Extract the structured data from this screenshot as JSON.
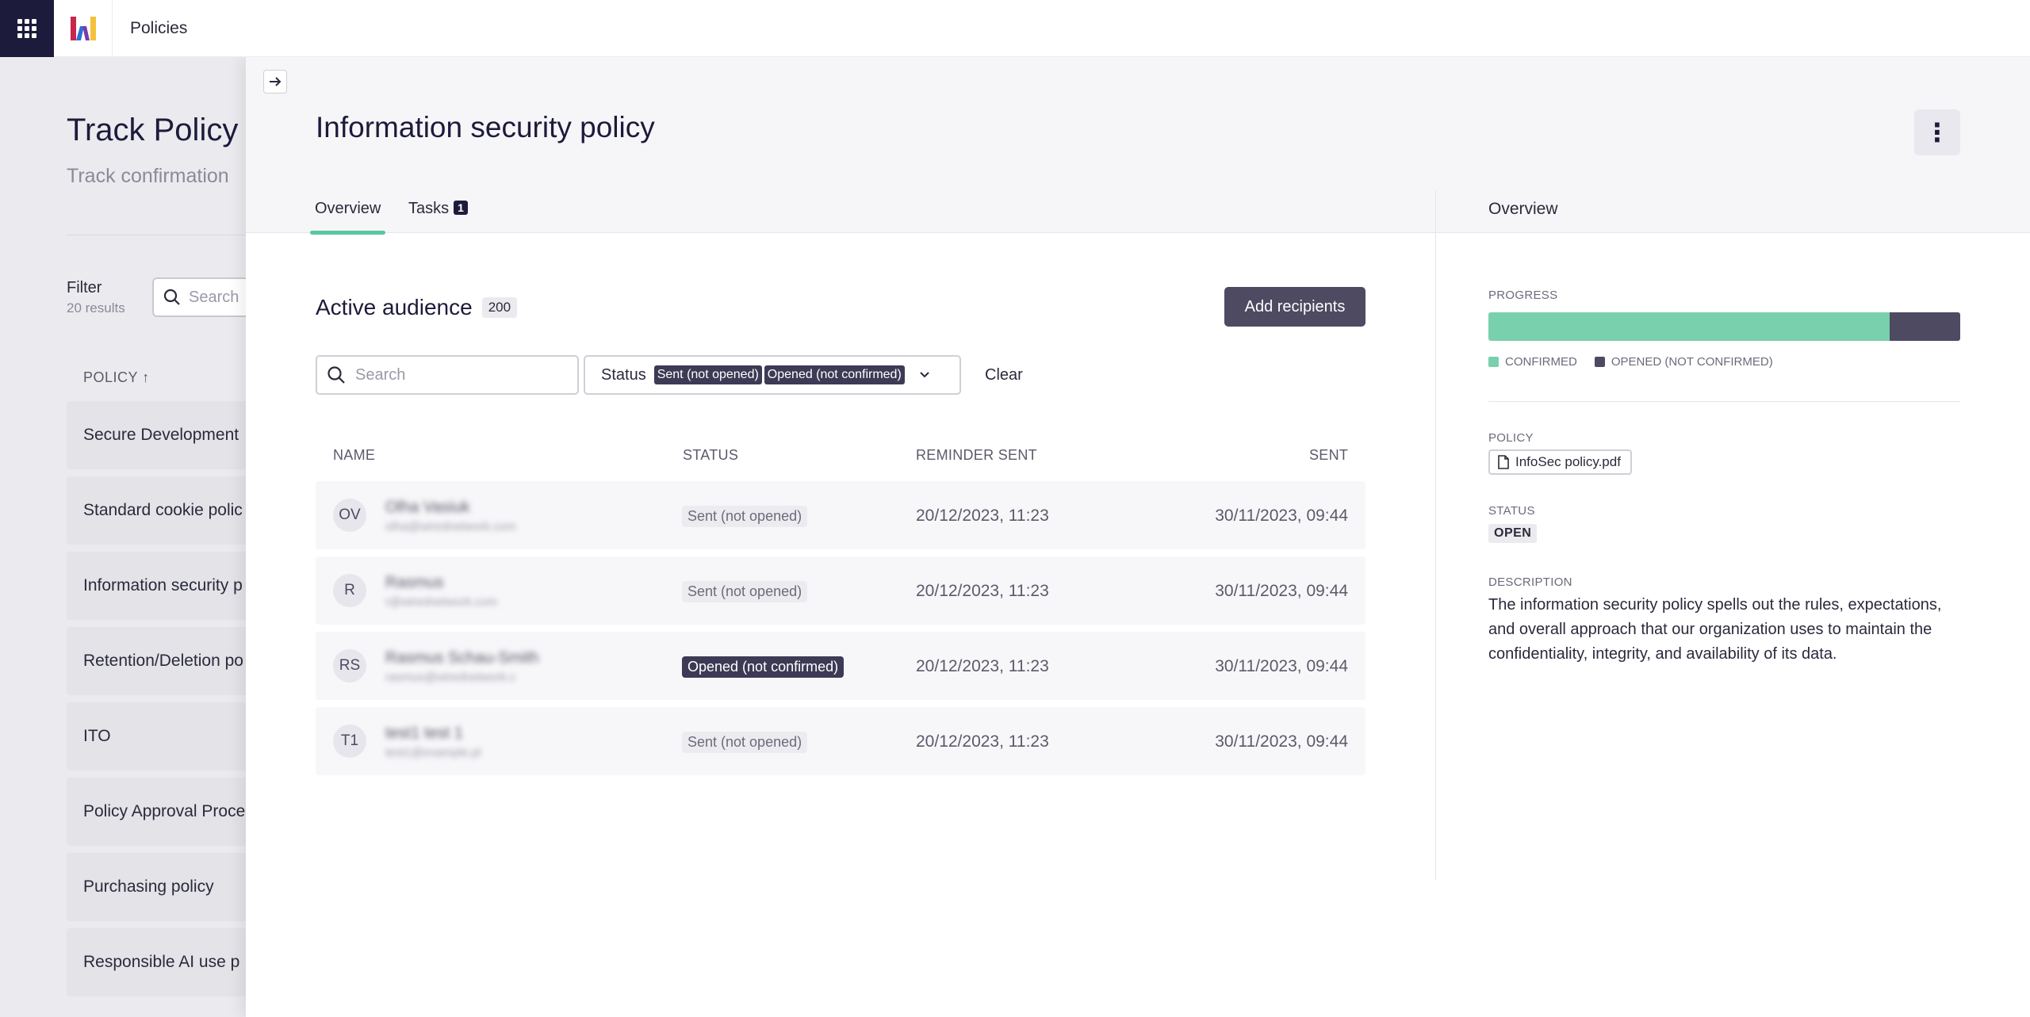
{
  "app": {
    "title": "Policies"
  },
  "background": {
    "title": "Track Policy",
    "subtitle": "Track confirmation",
    "filter_label": "Filter",
    "results": "20 results",
    "search_placeholder": "Search",
    "column_header": "POLICY ↑",
    "policies": [
      "Secure Development",
      "Standard cookie polic",
      "Information security p",
      "Retention/Deletion po",
      "ITO",
      "Policy Approval Proce",
      "Purchasing policy",
      "Responsible AI use p"
    ]
  },
  "drawer": {
    "title": "Information security policy",
    "more_icon": "⋮",
    "tabs": {
      "overview": "Overview",
      "tasks": "Tasks",
      "tasks_count": "1"
    },
    "side_tab": "Overview",
    "audience": {
      "title": "Active audience",
      "count": "200",
      "add_button": "Add recipients",
      "search_placeholder": "Search",
      "status_label": "Status",
      "status_chips": [
        "Sent (not opened)",
        "Opened (not confirmed)"
      ],
      "clear": "Clear",
      "columns": {
        "name": "NAME",
        "status": "STATUS",
        "reminder": "REMINDER SENT",
        "sent": "SENT"
      },
      "rows": [
        {
          "initials": "OV",
          "name": "Olha Vasiuk",
          "email": "olha@wirednetwork.com",
          "status": "Sent (not opened)",
          "status_style": "light",
          "reminder": "20/12/2023, 11:23",
          "sent": "30/11/2023, 09:44"
        },
        {
          "initials": "R",
          "name": "Rasmus",
          "email": "r@wirednetwork.com",
          "status": "Sent (not opened)",
          "status_style": "light",
          "reminder": "20/12/2023, 11:23",
          "sent": "30/11/2023, 09:44"
        },
        {
          "initials": "RS",
          "name": "Rasmus Schau-Smith",
          "email": "rasmus@wirednetwork.c",
          "status": "Opened (not confirmed)",
          "status_style": "dark",
          "reminder": "20/12/2023, 11:23",
          "sent": "30/11/2023, 09:44"
        },
        {
          "initials": "T1",
          "name": "test1 test 1",
          "email": "test1@example.pl",
          "status": "Sent (not opened)",
          "status_style": "light",
          "reminder": "20/12/2023, 11:23",
          "sent": "30/11/2023, 09:44"
        }
      ]
    },
    "side": {
      "progress_label": "PROGRESS",
      "progress": {
        "confirmed_fraction": 0.85,
        "opened_fraction": 0.15
      },
      "legend": [
        "CONFIRMED",
        "OPENED (NOT CONFIRMED)"
      ],
      "policy_label": "POLICY",
      "policy_file": "InfoSec policy.pdf",
      "status_label": "STATUS",
      "status_value": "OPEN",
      "description_label": "DESCRIPTION",
      "description": "The information security policy spells out the rules, expectations, and overall approach that our organization uses to maintain the confidentiality, integrity, and availability of its data."
    }
  },
  "colors": {
    "brand_dark": "#1d1b3b",
    "accent_green": "#79d0ad",
    "accent_dark": "#4d4a62",
    "logo_red": "#c8264b",
    "logo_yellow": "#f2c23a",
    "logo_blue": "#2d6fd6"
  }
}
